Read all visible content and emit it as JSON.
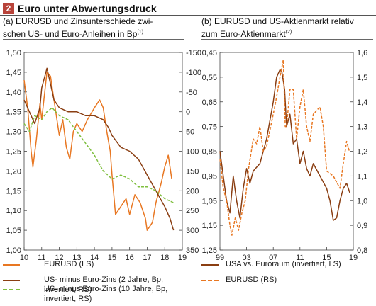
{
  "header": {
    "number": "2",
    "title": "Euro unter Abwertungsdruck"
  },
  "colors": {
    "eurusd": "#e87722",
    "us2y": "#8a3e12",
    "us10y": "#7fbf3f",
    "badge": "#b8433a"
  },
  "panel_a": {
    "title_line1": "(a) EURUSD und Zinsunterschiede zwi-",
    "title_line2": "schen US- und Euro-Anleihen in Bp",
    "title_sup": "(1)",
    "legend": [
      "EURUSD (LS)",
      "US- minus Euro-Zins (2 Jahre, Bp,",
      "invertiert, RS)",
      "US- minus Euro-Zins (10 Jahre, Bp,",
      "invertiert, RS)"
    ]
  },
  "panel_b": {
    "title_line1": "(b) EURUSD und US-Aktienmarkt relativ",
    "title_line2": "zum Euro-Aktienmarkt",
    "title_sup": "(2)",
    "legend": [
      "USA vs. Euroraum (invertiert, LS)",
      "EURUSD (RS)"
    ]
  },
  "chart_data": [
    {
      "type": "line",
      "xlabel": "",
      "ylabel": "",
      "x_ticks": [
        "10",
        "11",
        "12",
        "13",
        "14",
        "15",
        "16",
        "17",
        "18",
        "19"
      ],
      "x_range": [
        2010,
        2019
      ],
      "y_left_ticks": [
        "1,50",
        "1,45",
        "1,40",
        "1,35",
        "1,30",
        "1,25",
        "1,20",
        "1,15",
        "1,10",
        "1,05",
        "1,00"
      ],
      "y_left_range": [
        1.0,
        1.5
      ],
      "y_right_ticks": [
        "-150",
        "-100",
        "-50",
        "0",
        "50",
        "100",
        "150",
        "200",
        "250",
        "300",
        "350"
      ],
      "y_right_range": [
        -150,
        350
      ],
      "y_right_inverted": true,
      "grid": false,
      "legend_position": "bottom",
      "series": [
        {
          "name": "EURUSD (LS)",
          "axis": "left",
          "style": "solid",
          "x": [
            2010.0,
            2010.2,
            2010.4,
            2010.5,
            2010.7,
            2010.9,
            2011.0,
            2011.2,
            2011.3,
            2011.5,
            2011.6,
            2011.8,
            2012.0,
            2012.2,
            2012.4,
            2012.6,
            2012.8,
            2013.0,
            2013.3,
            2013.6,
            2014.0,
            2014.3,
            2014.5,
            2014.7,
            2014.9,
            2015.0,
            2015.2,
            2015.5,
            2015.8,
            2016.0,
            2016.3,
            2016.6,
            2016.9,
            2017.0,
            2017.3,
            2017.5,
            2017.8,
            2018.0,
            2018.2,
            2018.4
          ],
          "y": [
            1.43,
            1.36,
            1.25,
            1.21,
            1.28,
            1.37,
            1.33,
            1.41,
            1.45,
            1.44,
            1.41,
            1.35,
            1.29,
            1.33,
            1.26,
            1.23,
            1.3,
            1.32,
            1.3,
            1.33,
            1.36,
            1.38,
            1.36,
            1.3,
            1.25,
            1.19,
            1.09,
            1.11,
            1.13,
            1.09,
            1.14,
            1.12,
            1.08,
            1.05,
            1.07,
            1.12,
            1.17,
            1.21,
            1.24,
            1.18
          ]
        },
        {
          "name": "US- minus Euro-Zins (2 Jahre, Bp, invertiert, RS)",
          "axis": "right",
          "style": "solid",
          "x": [
            2010.0,
            2010.3,
            2010.6,
            2010.9,
            2011.0,
            2011.3,
            2011.5,
            2011.7,
            2012.0,
            2012.5,
            2013.0,
            2013.5,
            2014.0,
            2014.5,
            2014.8,
            2015.0,
            2015.5,
            2016.0,
            2016.5,
            2017.0,
            2017.5,
            2018.0,
            2018.3,
            2018.5
          ],
          "y": [
            -30,
            0,
            30,
            -10,
            -60,
            -110,
            -70,
            -30,
            -10,
            0,
            0,
            10,
            10,
            20,
            40,
            60,
            90,
            100,
            120,
            160,
            200,
            240,
            270,
            300
          ]
        },
        {
          "name": "US- minus Euro-Zins (10 Jahre, Bp, invertiert, RS)",
          "axis": "right",
          "style": "dashed",
          "x": [
            2010.0,
            2010.3,
            2010.6,
            2011.0,
            2011.3,
            2011.6,
            2012.0,
            2012.5,
            2013.0,
            2013.5,
            2014.0,
            2014.5,
            2015.0,
            2015.5,
            2016.0,
            2016.5,
            2017.0,
            2017.5,
            2018.0,
            2018.5
          ],
          "y": [
            30,
            50,
            10,
            20,
            0,
            -10,
            10,
            20,
            50,
            80,
            110,
            150,
            170,
            160,
            170,
            190,
            190,
            200,
            220,
            230
          ]
        }
      ]
    },
    {
      "type": "line",
      "xlabel": "",
      "ylabel": "",
      "x_ticks": [
        "99",
        "03",
        "07",
        "11",
        "15",
        "19"
      ],
      "x_range": [
        1999,
        2019
      ],
      "y_left_ticks": [
        "0,45",
        "0,55",
        "0,65",
        "0,75",
        "0,85",
        "0,95",
        "1,05",
        "1,15",
        "1,25"
      ],
      "y_left_range": [
        0.45,
        1.25
      ],
      "y_left_inverted": true,
      "y_right_ticks": [
        "1,6",
        "1,5",
        "1,4",
        "1,3",
        "1,2",
        "1,1",
        "1,0",
        "0,9",
        "0,8"
      ],
      "y_right_range": [
        0.8,
        1.6
      ],
      "grid": false,
      "legend_position": "bottom",
      "series": [
        {
          "name": "USA vs. Euroraum (invertiert, LS)",
          "axis": "left",
          "style": "solid",
          "x": [
            1999.0,
            1999.5,
            2000.0,
            2000.5,
            2001.0,
            2001.5,
            2002.0,
            2002.5,
            2003.0,
            2003.5,
            2004.0,
            2005.0,
            2006.0,
            2007.0,
            2007.5,
            2008.0,
            2008.3,
            2008.7,
            2009.0,
            2009.5,
            2010.0,
            2010.5,
            2011.0,
            2011.5,
            2012.0,
            2012.5,
            2013.0,
            2014.0,
            2015.0,
            2015.5,
            2016.0,
            2016.5,
            2017.0,
            2017.5,
            2018.0,
            2018.5
          ],
          "y": [
            0.85,
            0.95,
            1.05,
            1.1,
            0.95,
            1.05,
            1.12,
            1.0,
            0.92,
            0.98,
            0.93,
            0.9,
            0.8,
            0.65,
            0.55,
            0.52,
            0.53,
            0.6,
            0.75,
            0.7,
            0.82,
            0.8,
            0.9,
            0.85,
            0.92,
            0.95,
            0.9,
            0.95,
            1.0,
            1.05,
            1.13,
            1.12,
            1.05,
            1.0,
            0.98,
            1.02
          ]
        },
        {
          "name": "EURUSD (RS)",
          "axis": "right",
          "style": "dashed",
          "x": [
            1999.0,
            1999.5,
            2000.0,
            2000.5,
            2000.8,
            2001.3,
            2001.8,
            2002.3,
            2002.8,
            2003.3,
            2004.0,
            2004.5,
            2005.0,
            2005.5,
            2006.0,
            2007.0,
            2007.5,
            2008.0,
            2008.5,
            2008.8,
            2009.0,
            2009.5,
            2010.0,
            2010.5,
            2011.0,
            2011.5,
            2012.0,
            2012.5,
            2013.0,
            2014.0,
            2014.5,
            2015.0,
            2016.0,
            2017.0,
            2017.5,
            2018.0,
            2018.4
          ],
          "y": [
            1.17,
            1.05,
            1.0,
            0.9,
            0.86,
            0.93,
            0.88,
            0.95,
            1.0,
            1.13,
            1.25,
            1.23,
            1.3,
            1.2,
            1.22,
            1.35,
            1.42,
            1.5,
            1.57,
            1.3,
            1.3,
            1.45,
            1.45,
            1.25,
            1.38,
            1.45,
            1.3,
            1.24,
            1.35,
            1.38,
            1.3,
            1.12,
            1.1,
            1.05,
            1.15,
            1.24,
            1.2
          ]
        }
      ]
    }
  ]
}
